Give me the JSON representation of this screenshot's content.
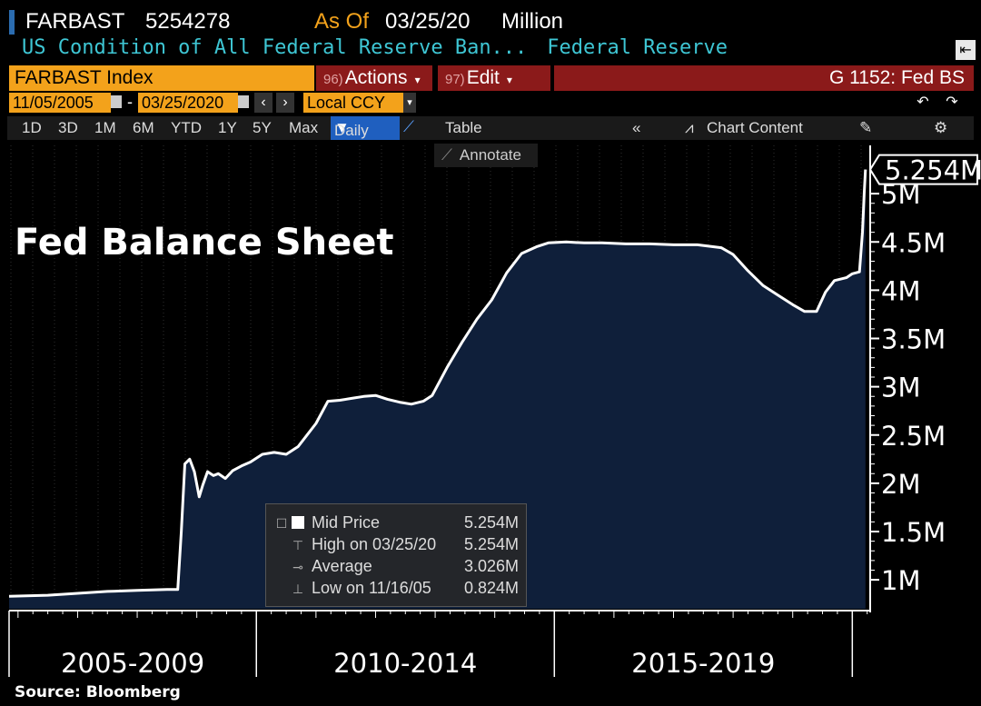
{
  "header": {
    "ticker": "FARBAST",
    "value": "5254278",
    "as_of_label": "As Of",
    "as_of_date": "03/25/20",
    "unit": "Million",
    "description": "US Condition of All Federal Reserve Ban...",
    "source_name": "Federal Reserve"
  },
  "toolbar": {
    "index_label": "FARBAST Index",
    "actions_num": "96)",
    "actions_label": "Actions",
    "edit_num": "97)",
    "edit_label": "Edit",
    "graph_label": "G 1152: Fed BS",
    "start_date": "11/05/2005",
    "end_date": "03/25/2020",
    "currency": "Local CCY",
    "periods": [
      "1D",
      "3D",
      "1M",
      "6M",
      "YTD",
      "1Y",
      "5Y",
      "Max"
    ],
    "frequency": "Daily",
    "table_label": "Table",
    "chart_content_label": "Chart Content",
    "annotate_label": "Annotate"
  },
  "legend": {
    "rows": [
      {
        "label": "Mid Price",
        "value": "5.254M"
      },
      {
        "label": "High on 03/25/20",
        "value": "5.254M"
      },
      {
        "label": "Average",
        "value": "3.026M"
      },
      {
        "label": "Low on 11/16/05",
        "value": "0.824M"
      }
    ]
  },
  "chart_data": {
    "type": "area",
    "title": "Fed Balance Sheet",
    "source": "Source: Bloomberg",
    "last_value_label": "5.254M",
    "y_ticks": [
      {
        "value": 1.0,
        "label": "1M"
      },
      {
        "value": 1.5,
        "label": "1.5M"
      },
      {
        "value": 2.0,
        "label": "2M"
      },
      {
        "value": 2.5,
        "label": "2.5M"
      },
      {
        "value": 3.0,
        "label": "3M"
      },
      {
        "value": 3.5,
        "label": "3.5M"
      },
      {
        "value": 4.0,
        "label": "4M"
      },
      {
        "value": 4.5,
        "label": "4.5M"
      },
      {
        "value": 5.0,
        "label": "5M"
      }
    ],
    "x_groups": [
      "2005-2009",
      "2010-2014",
      "2015-2019"
    ],
    "x_range": [
      2005.85,
      2020.3
    ],
    "ylim": [
      0.7,
      5.5
    ],
    "colors": {
      "fill": "#0f1f3a",
      "line": "#ffffff"
    },
    "series": [
      {
        "x": [
          2005.85,
          2006.5,
          2007.0,
          2007.5,
          2008.0,
          2008.5,
          2008.68,
          2008.74,
          2008.8,
          2008.88,
          2008.96,
          2009.04,
          2009.1,
          2009.18,
          2009.28,
          2009.36,
          2009.48,
          2009.6,
          2009.75,
          2009.9,
          2010.1,
          2010.3,
          2010.5,
          2010.7,
          2010.85,
          2011.0,
          2011.2,
          2011.4,
          2011.6,
          2011.8,
          2012.0,
          2012.2,
          2012.4,
          2012.6,
          2012.8,
          2012.95,
          2013.2,
          2013.45,
          2013.7,
          2013.95,
          2014.2,
          2014.45,
          2014.7,
          2014.9,
          2015.2,
          2015.5,
          2015.8,
          2016.2,
          2016.6,
          2017.0,
          2017.4,
          2017.8,
          2018.0,
          2018.25,
          2018.5,
          2018.75,
          2019.0,
          2019.2,
          2019.4,
          2019.55,
          2019.7,
          2019.9,
          2020.0,
          2020.12,
          2020.17,
          2020.2,
          2020.22
        ],
        "values": [
          0.83,
          0.84,
          0.86,
          0.88,
          0.89,
          0.9,
          0.9,
          1.5,
          2.2,
          2.25,
          2.12,
          1.86,
          1.98,
          2.12,
          2.08,
          2.1,
          2.05,
          2.13,
          2.18,
          2.22,
          2.3,
          2.32,
          2.3,
          2.38,
          2.5,
          2.62,
          2.85,
          2.86,
          2.88,
          2.9,
          2.91,
          2.87,
          2.84,
          2.82,
          2.85,
          2.91,
          3.2,
          3.46,
          3.7,
          3.9,
          4.18,
          4.38,
          4.45,
          4.49,
          4.5,
          4.49,
          4.49,
          4.48,
          4.48,
          4.47,
          4.47,
          4.44,
          4.37,
          4.2,
          4.05,
          3.95,
          3.85,
          3.78,
          3.78,
          3.98,
          4.1,
          4.13,
          4.17,
          4.19,
          4.6,
          5.0,
          5.25
        ]
      }
    ]
  }
}
